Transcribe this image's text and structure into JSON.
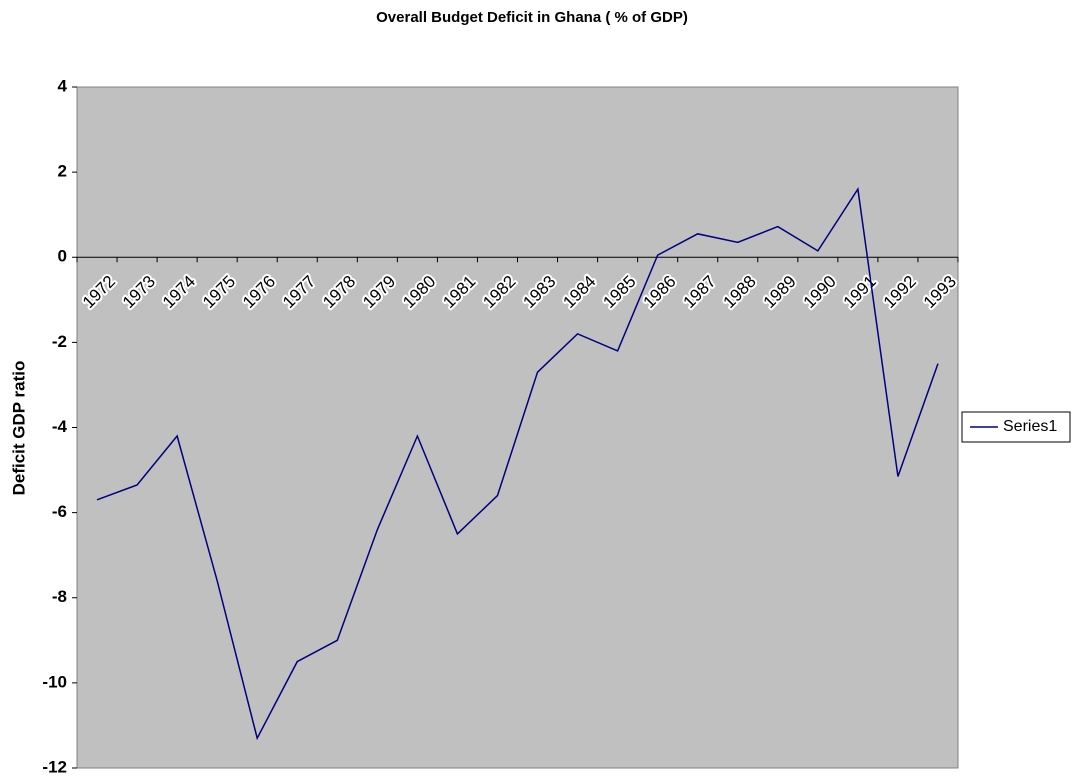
{
  "chart_data": {
    "type": "line",
    "title": "Overall Budget Deficit in Ghana ( % of GDP)",
    "y_label": "Deficit GDP ratio",
    "categories": [
      "1972",
      "1973",
      "1974",
      "1975",
      "1976",
      "1977",
      "1978",
      "1979",
      "1980",
      "1981",
      "1982",
      "1983",
      "1984",
      "1985",
      "1986",
      "1987",
      "1988",
      "1989",
      "1990",
      "1991",
      "1992",
      "1993"
    ],
    "series": [
      {
        "name": "Series1",
        "color": "#000080",
        "values": [
          -5.7,
          -5.35,
          -4.2,
          -7.6,
          -11.3,
          -9.5,
          -9.0,
          -6.4,
          -4.2,
          -6.5,
          -5.6,
          -2.7,
          -1.8,
          -2.2,
          0.05,
          0.55,
          0.35,
          0.72,
          0.15,
          1.6,
          -5.15,
          -2.5
        ]
      }
    ],
    "ylim": [
      -12,
      4
    ],
    "yticks": [
      -12,
      -10,
      -8,
      -6,
      -4,
      -2,
      0,
      2,
      4
    ],
    "grid": false,
    "legend": "right",
    "background": "#c0c0c0"
  }
}
